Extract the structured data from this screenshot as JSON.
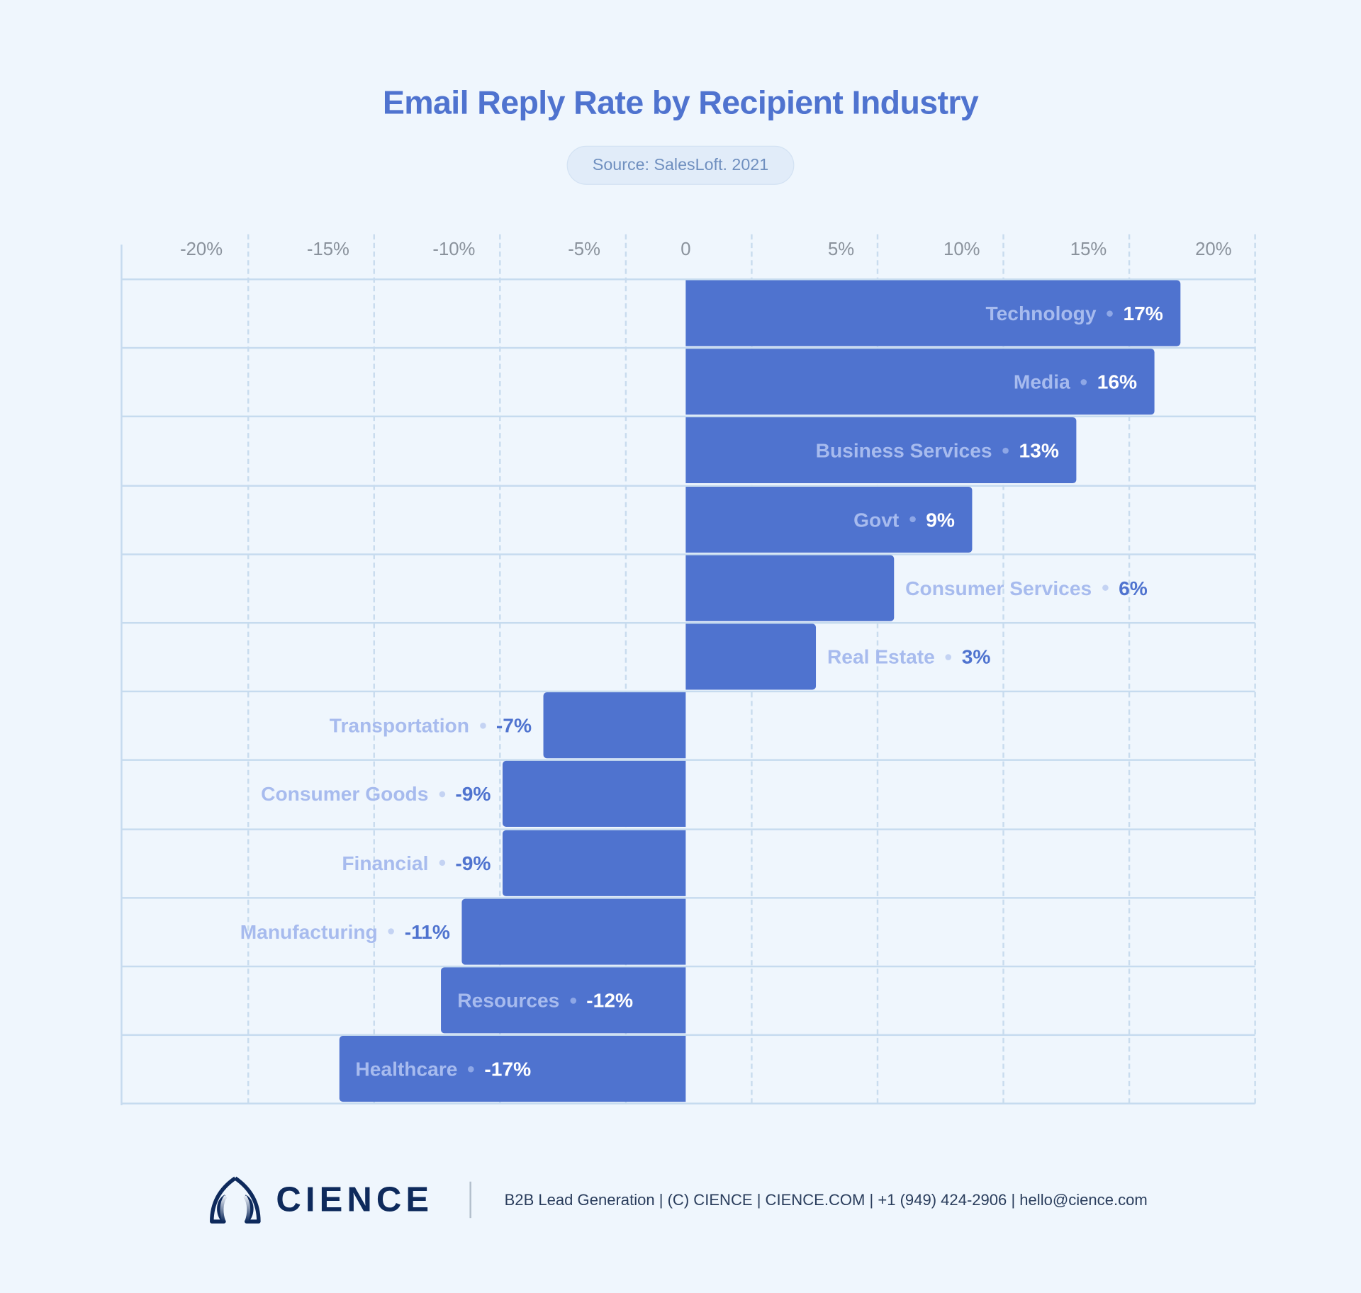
{
  "chart_data": {
    "type": "bar",
    "orientation": "horizontal",
    "title": "Email Reply Rate by Recipient Industry",
    "subtitle": "Source: SalesLoft. 2021",
    "categories": [
      "Technology",
      "Media",
      "Business Services",
      "Govt",
      "Consumer Services",
      "Real Estate",
      "Transportation",
      "Consumer Goods",
      "Financial",
      "Manufacturing",
      "Resources",
      "Healthcare"
    ],
    "values": [
      17,
      16,
      13,
      9,
      6,
      3,
      -7,
      -9,
      -9,
      -11,
      -12,
      -17
    ],
    "value_labels": [
      "17%",
      "16%",
      "13%",
      "9%",
      "6%",
      "3%",
      "-7%",
      "-9%",
      "-9%",
      "-11%",
      "-12%",
      "-17%"
    ],
    "xticks": [
      "-20%",
      "-15%",
      "-10%",
      "-5%",
      "0",
      "5%",
      "10%",
      "15%",
      "20%"
    ],
    "xlim": [
      -20,
      20
    ],
    "grid": true,
    "colors": {
      "bar": "#4f73cf",
      "title": "#4f73cf",
      "background": "#eff6fd"
    }
  },
  "footer": {
    "logo_text": "CIENCE",
    "text": "B2B Lead Generation | (C) CIENCE | CIENCE.COM | +1 (949) 424-2906 | hello@cience.com"
  }
}
